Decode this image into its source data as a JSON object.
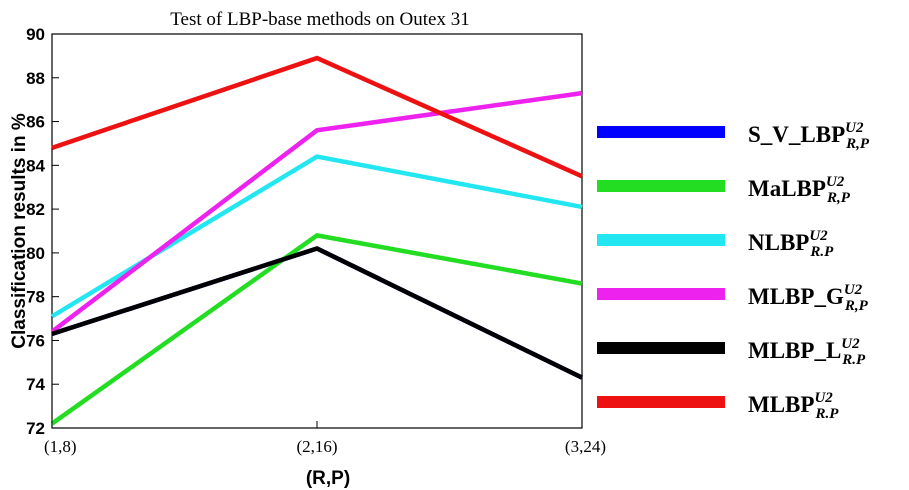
{
  "chart_data": {
    "type": "line",
    "title": "Test of LBP-base methods on Outex 31",
    "xlabel": "(R,P)",
    "ylabel": "Classification results in %",
    "categories": [
      "(1,8)",
      "(2,16)",
      "(3,24)"
    ],
    "ylim": [
      72,
      90
    ],
    "yticks": [
      72,
      74,
      76,
      78,
      80,
      82,
      84,
      86,
      88,
      90
    ],
    "grid": false,
    "legend_position": "right",
    "series": [
      {
        "name": "S_V_LBP",
        "sup": "U2",
        "sub": "R,P",
        "color": "#0000ff",
        "values": [
          76.3,
          80.2,
          74.3
        ]
      },
      {
        "name": "MaLBP",
        "sup": "U2",
        "sub": "R,P",
        "color": "#22dd22",
        "values": [
          72.2,
          80.8,
          78.6
        ]
      },
      {
        "name": "NLBP",
        "sup": "U2",
        "sub": "R.P",
        "color": "#22e6f0",
        "values": [
          77.1,
          84.4,
          82.1
        ]
      },
      {
        "name": "MLBP_G",
        "sup": "U2",
        "sub": "R,P",
        "color": "#ee22ee",
        "values": [
          76.4,
          85.6,
          87.3
        ]
      },
      {
        "name": "MLBP_L",
        "sup": "U2",
        "sub": "R.P",
        "color": "#000000",
        "values": [
          76.3,
          80.2,
          74.3
        ]
      },
      {
        "name": "MLBP",
        "sup": "U2",
        "sub": "R.P",
        "color": "#ee1111",
        "values": [
          84.8,
          88.9,
          83.5
        ]
      }
    ]
  }
}
